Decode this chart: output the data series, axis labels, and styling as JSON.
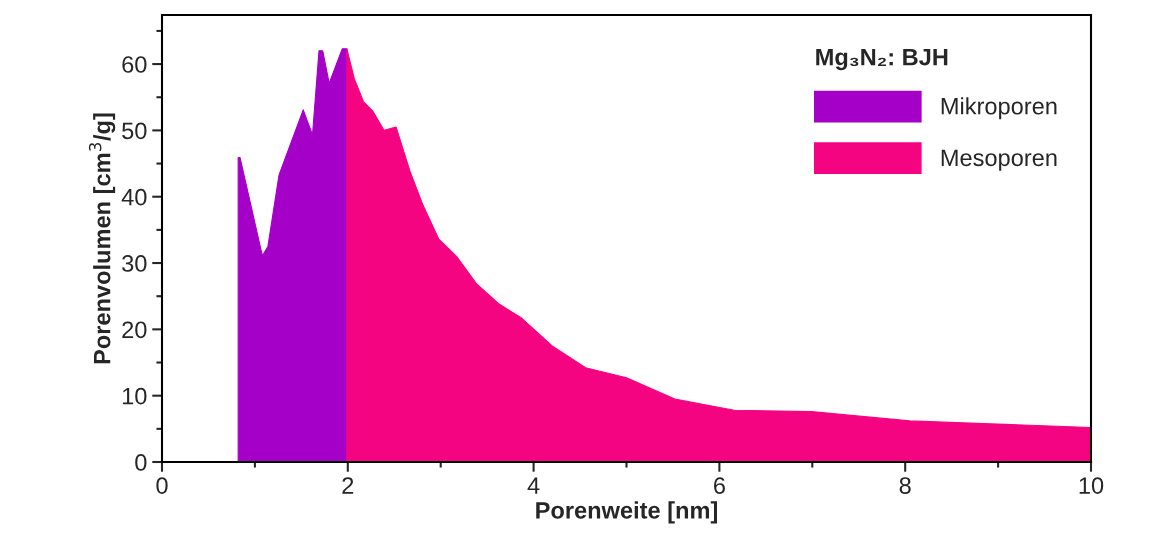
{
  "chart_data": {
    "type": "area",
    "xlabel": "Porenweite [nm]",
    "ylabel": "Porenvolumen [cm$^{3}$/g]",
    "legend_title": "Mg₃N₂: BJH",
    "legend": "top right",
    "grid": false,
    "xlim": [
      0,
      10
    ],
    "ylim": [
      0,
      67.4
    ],
    "xticks": [
      0,
      {
        "value": 1,
        "label": null
      },
      2,
      {
        "value": 3,
        "label": null
      },
      4,
      {
        "value": 5,
        "label": null
      },
      6,
      {
        "value": 7,
        "label": null
      },
      8,
      {
        "value": 9,
        "label": null
      },
      10
    ],
    "yticks": [
      0,
      {
        "value": 5,
        "label": null
      },
      10,
      {
        "value": 15,
        "label": null
      },
      20,
      {
        "value": 25,
        "label": null
      },
      30,
      {
        "value": 35,
        "label": null
      },
      40,
      {
        "value": 45,
        "label": null
      },
      50,
      {
        "value": 55,
        "label": null
      },
      60,
      {
        "value": 65,
        "label": null
      }
    ],
    "series": [
      {
        "name": "Mikroporen",
        "color": "#a500c8",
        "x": [
          0.82,
          0.84,
          1.08,
          1.14,
          1.26,
          1.52,
          1.62,
          1.69,
          1.73,
          1.8,
          1.94,
          1.99
        ],
        "values": [
          45.9,
          45.9,
          31.1,
          32.5,
          43.3,
          53.1,
          49.3,
          62.0,
          62.0,
          57.1,
          62.3,
          62.3
        ]
      },
      {
        "name": "Mesoporen",
        "color": "#f50482",
        "x": [
          1.99,
          2.07,
          2.17,
          2.27,
          2.39,
          2.52,
          2.67,
          2.81,
          2.98,
          3.17,
          3.39,
          3.62,
          3.87,
          4.2,
          4.56,
          5.0,
          5.52,
          6.16,
          6.99,
          8.05,
          10.0
        ],
        "values": [
          62.3,
          57.8,
          54.3,
          52.9,
          50.0,
          50.5,
          43.8,
          38.7,
          33.6,
          31.0,
          26.8,
          23.9,
          21.7,
          17.5,
          14.2,
          12.7,
          9.5,
          7.8,
          7.6,
          6.2,
          5.2
        ]
      }
    ]
  }
}
